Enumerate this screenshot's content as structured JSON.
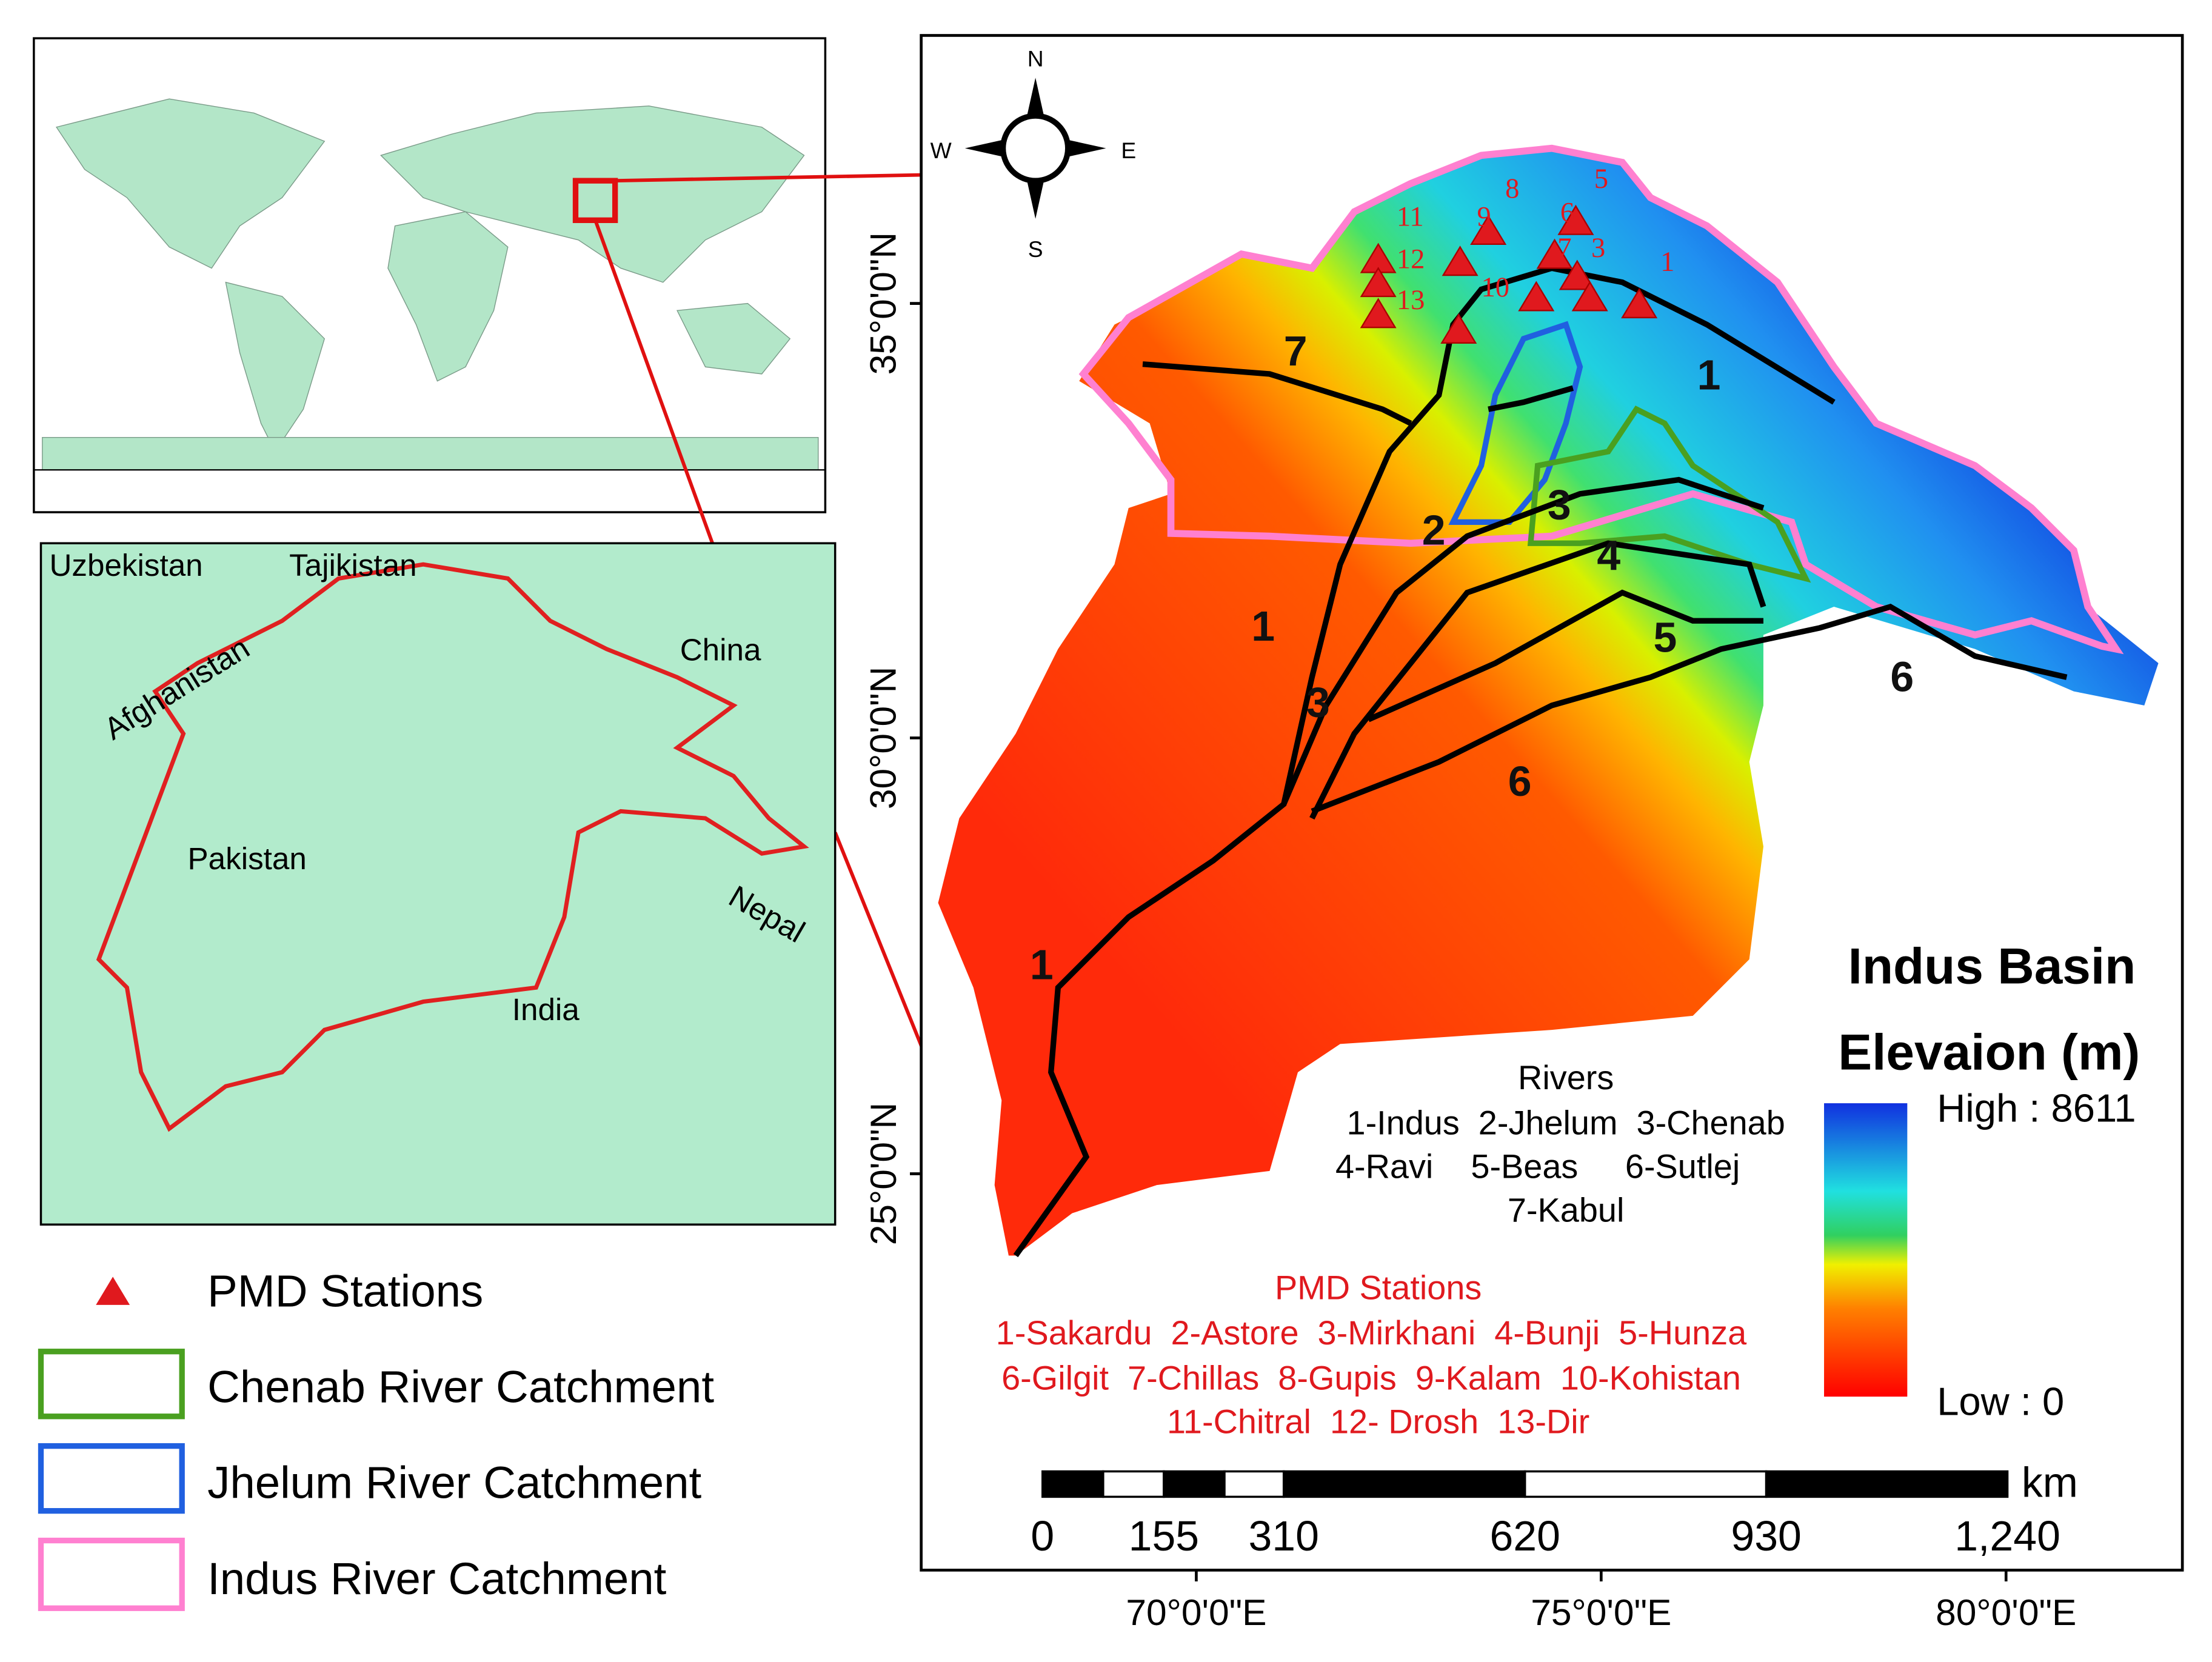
{
  "inset": {
    "labels": [
      "Uzbekistan",
      "Tajikistan",
      "China",
      "Afghanistan",
      "Pakistan",
      "Nepal",
      "India"
    ]
  },
  "legend": {
    "items": [
      {
        "label": "PMD Stations"
      },
      {
        "label": "Chenab River Catchment"
      },
      {
        "label": "Jhelum River Catchment"
      },
      {
        "label": "Indus River Catchment"
      }
    ]
  },
  "main_map": {
    "compass": {
      "n": "N",
      "s": "S",
      "e": "E",
      "w": "W"
    },
    "latitude_labels": [
      "35°0'0\"N",
      "30°0'0\"N",
      "25°0'0\"N"
    ],
    "longitude_labels": [
      "70°0'0\"E",
      "75°0'0\"E",
      "80°0'0\"E"
    ],
    "station_numbers": [
      "11",
      "12",
      "13",
      "9",
      "8",
      "5",
      "6",
      "7",
      "3",
      "1",
      "10"
    ],
    "river_numbers": [
      "1",
      "7",
      "2",
      "3",
      "4",
      "5",
      "1",
      "3",
      "6",
      "1",
      "6"
    ],
    "title_lines": [
      "Indus Basin",
      "Elevaion (m)"
    ],
    "colorbar": {
      "high": "High : 8611",
      "low": "Low : 0"
    },
    "rivers_legend": {
      "title": "Rivers",
      "lines": [
        "1-Indus  2-Jhelum  3-Chenab",
        "4-Ravi    5-Beas     6-Sutlej",
        "7-Kabul"
      ]
    },
    "stations_legend": {
      "title": "PMD Stations",
      "lines": [
        "1-Sakardu  2-Astore  3-Mirkhani  4-Bunji  5-Hunza",
        "6-Gilgit  7-Chillas  8-Gupis  9-Kalam  10-Kohistan",
        "11-Chitral  12- Drosh  13-Dir"
      ]
    },
    "scale_bar": {
      "labels": [
        "0",
        "155",
        "310",
        "620",
        "930",
        "1,240"
      ],
      "unit": "km"
    }
  }
}
